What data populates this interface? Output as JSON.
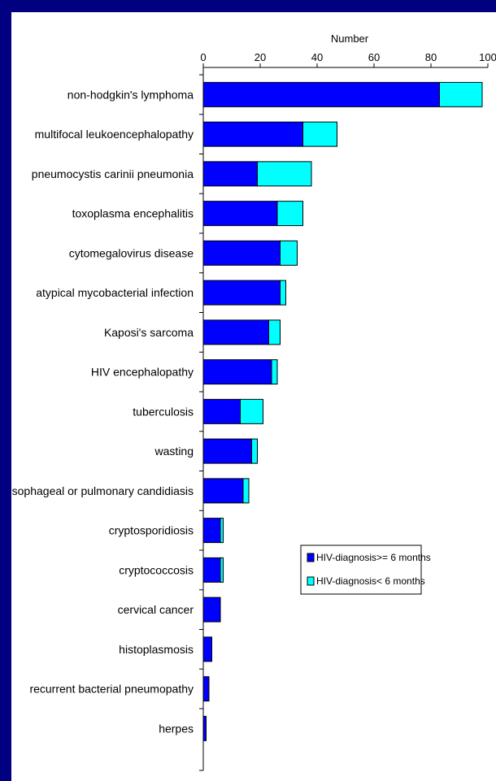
{
  "chart_data": {
    "type": "bar",
    "orientation": "horizontal",
    "stacked": true,
    "xlabel": "Number",
    "xlim": [
      0,
      100
    ],
    "xticks": [
      "0",
      "20",
      "40",
      "60",
      "80",
      "100"
    ],
    "xaxis_position": "top",
    "grid": false,
    "legend_position": "center-right",
    "categories": [
      "non-hodgkin's lymphoma",
      "multifocal leukoencephalopathy",
      "pneumocystis carinii pneumonia",
      "toxoplasma encephalitis",
      "cytomegalovirus disease",
      "atypical mycobacterial infection",
      "Kaposi's sarcoma",
      "HIV encephalopathy",
      "tuberculosis",
      "wasting",
      "oesophageal or pulmonary candidiasis",
      "cryptosporidiosis",
      "cryptococcosis",
      "cervical cancer",
      "histoplasmosis",
      "recurrent bacterial pneumopathy",
      "herpes"
    ],
    "series": [
      {
        "name": "HIV-diagnosis>= 6 months",
        "color": "#0000ff",
        "values": [
          83,
          35,
          19,
          26,
          27,
          27,
          23,
          24,
          13,
          17,
          14,
          6,
          6,
          6,
          3,
          2,
          1
        ]
      },
      {
        "name": "HIV-diagnosis< 6 months",
        "color": "#00ffff",
        "values": [
          15,
          12,
          19,
          9,
          6,
          2,
          4,
          2,
          8,
          2,
          2,
          1,
          1,
          0,
          0,
          0,
          0
        ]
      }
    ]
  }
}
